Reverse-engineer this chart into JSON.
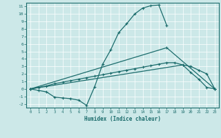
{
  "xlabel": "Humidex (Indice chaleur)",
  "xlim": [
    -0.5,
    23.5
  ],
  "ylim": [
    -2.5,
    11.5
  ],
  "xticks": [
    0,
    1,
    2,
    3,
    4,
    5,
    6,
    7,
    8,
    9,
    10,
    11,
    12,
    13,
    14,
    15,
    16,
    17,
    18,
    19,
    20,
    21,
    22,
    23
  ],
  "yticks": [
    -2,
    -1,
    0,
    1,
    2,
    3,
    4,
    5,
    6,
    7,
    8,
    9,
    10,
    11
  ],
  "bg_color": "#cce8e8",
  "line_color": "#1a6b6b",
  "grid_color": "#ffffff",
  "line1_x": [
    0,
    1,
    2,
    3,
    4,
    5,
    6,
    7,
    8,
    9,
    10,
    11,
    12,
    13,
    14,
    15,
    16,
    17
  ],
  "line1_y": [
    0,
    -0.2,
    -0.4,
    -1.1,
    -1.2,
    -1.3,
    -1.5,
    -2.2,
    0.3,
    3.3,
    5.2,
    7.5,
    8.7,
    10.0,
    10.8,
    11.1,
    11.2,
    8.5
  ],
  "line2_x": [
    0,
    17,
    23
  ],
  "line2_y": [
    0,
    5.5,
    0
  ],
  "line3_x": [
    0,
    19,
    20,
    21,
    22,
    23
  ],
  "line3_y": [
    0,
    3.2,
    2.2,
    1.3,
    0.2,
    0.0
  ],
  "line4_x": [
    0,
    1,
    2,
    3,
    4,
    5,
    6,
    7,
    8,
    9,
    10,
    11,
    12,
    13,
    14,
    15,
    16,
    17,
    18,
    19,
    20,
    21,
    22,
    23
  ],
  "line4_y": [
    0,
    0.2,
    0.4,
    0.7,
    0.9,
    1.1,
    1.3,
    1.5,
    1.7,
    1.9,
    2.1,
    2.3,
    2.5,
    2.7,
    2.9,
    3.1,
    3.3,
    3.5,
    3.5,
    3.2,
    3.0,
    2.5,
    2.0,
    0.0
  ]
}
